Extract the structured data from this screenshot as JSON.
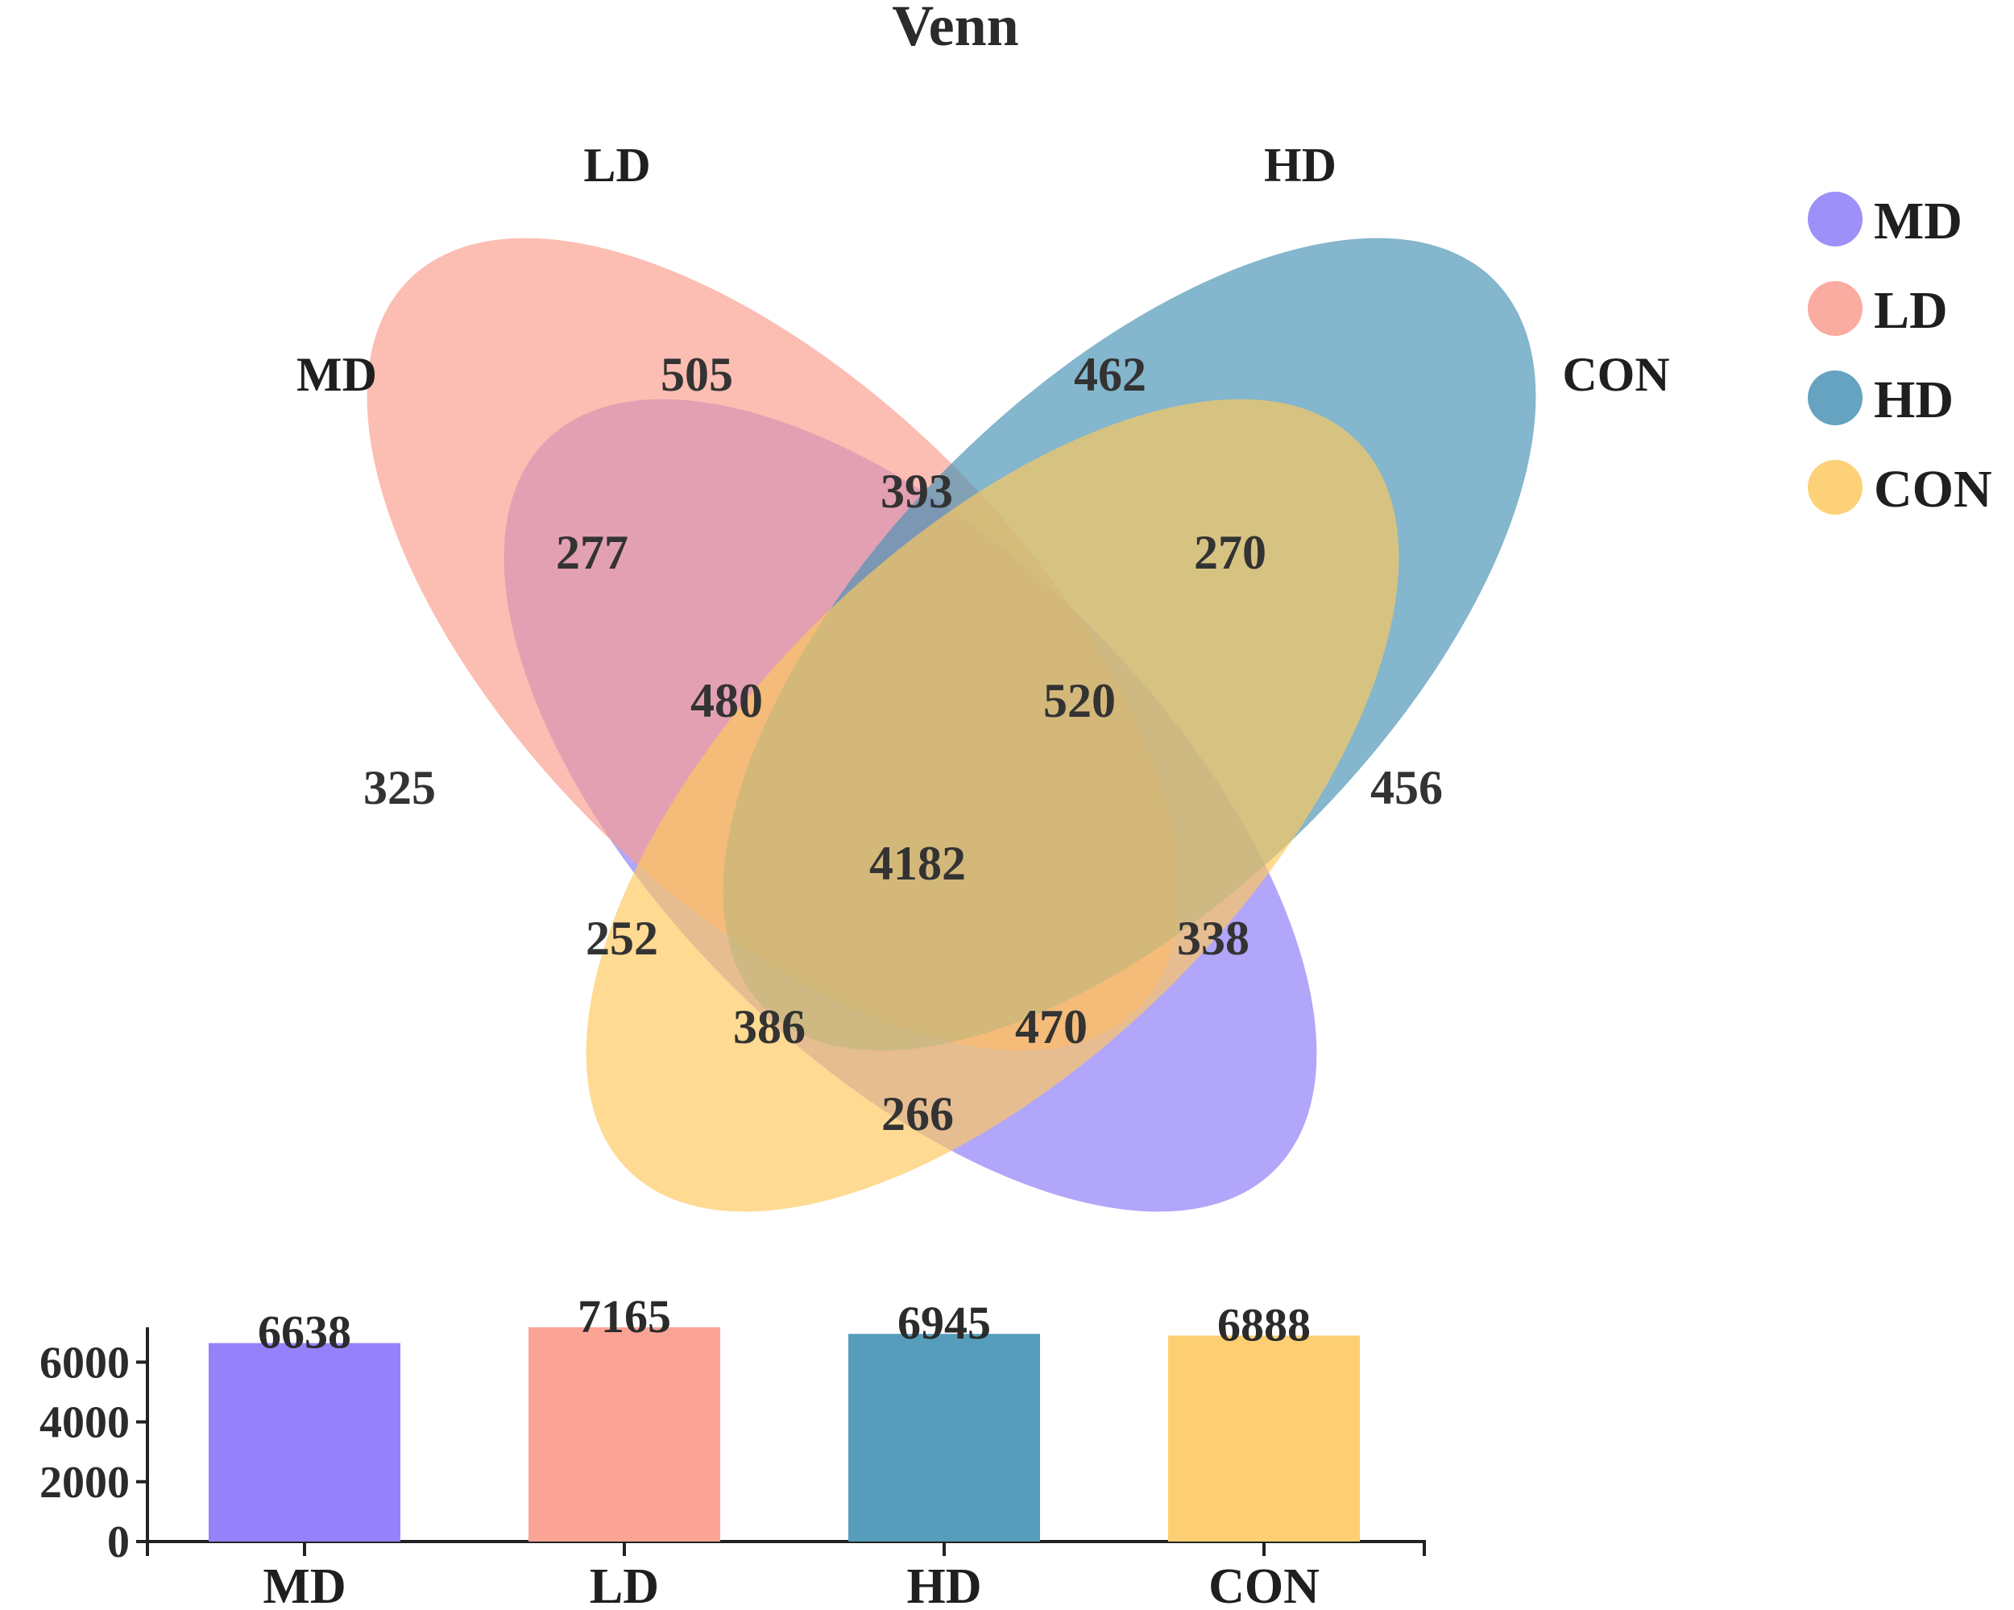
{
  "chart_data": [
    {
      "type": "venn",
      "title": "Venn",
      "sets": [
        {
          "name": "MD",
          "color": "#8c7cf7"
        },
        {
          "name": "LD",
          "color": "#fa9e8f"
        },
        {
          "name": "HD",
          "color": "#4a93b5"
        },
        {
          "name": "CON",
          "color": "#fdc95f"
        }
      ],
      "regions": [
        {
          "sets": [
            "MD"
          ],
          "value": 325
        },
        {
          "sets": [
            "LD"
          ],
          "value": 505
        },
        {
          "sets": [
            "HD"
          ],
          "value": 462
        },
        {
          "sets": [
            "CON"
          ],
          "value": 456
        },
        {
          "sets": [
            "MD",
            "LD"
          ],
          "value": 277
        },
        {
          "sets": [
            "LD",
            "HD"
          ],
          "value": 393
        },
        {
          "sets": [
            "HD",
            "CON"
          ],
          "value": 270
        },
        {
          "sets": [
            "MD",
            "HD"
          ],
          "value": 252
        },
        {
          "sets": [
            "LD",
            "CON"
          ],
          "value": 338
        },
        {
          "sets": [
            "MD",
            "CON"
          ],
          "value": 266
        },
        {
          "sets": [
            "MD",
            "LD",
            "HD"
          ],
          "value": 480
        },
        {
          "sets": [
            "LD",
            "HD",
            "CON"
          ],
          "value": 520
        },
        {
          "sets": [
            "MD",
            "HD",
            "CON"
          ],
          "value": 386
        },
        {
          "sets": [
            "MD",
            "LD",
            "CON"
          ],
          "value": 470
        },
        {
          "sets": [
            "MD",
            "LD",
            "HD",
            "CON"
          ],
          "value": 4182
        }
      ],
      "legend": {
        "position": "top-right",
        "items": [
          "MD",
          "LD",
          "HD",
          "CON"
        ]
      }
    },
    {
      "type": "bar",
      "categories": [
        "MD",
        "LD",
        "HD",
        "CON"
      ],
      "values": [
        6638,
        7165,
        6945,
        6888
      ],
      "colors": [
        "#9582fb",
        "#fba496",
        "#569dbc",
        "#fdcf72"
      ],
      "yticks": [
        0,
        2000,
        4000,
        6000
      ],
      "ylim": [
        0,
        7165
      ],
      "xlabel": "",
      "ylabel": ""
    }
  ]
}
